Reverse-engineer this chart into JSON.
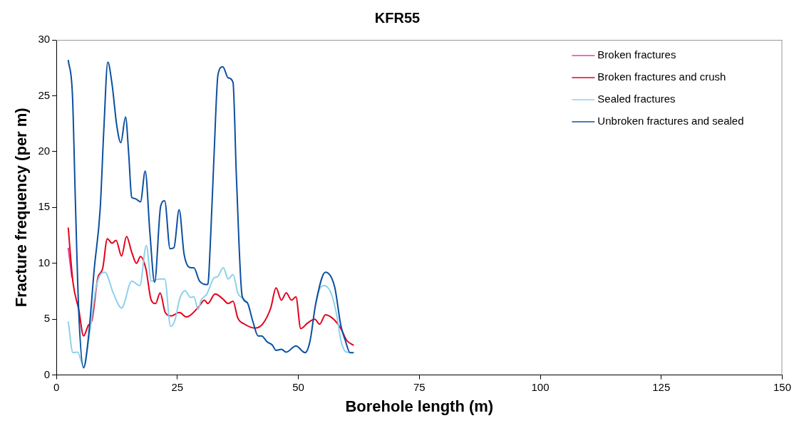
{
  "chart_data": {
    "type": "line",
    "title": "KFR55",
    "xlabel": "Borehole length (m)",
    "ylabel": "Fracture frequency (per m)",
    "xlim": [
      0,
      150
    ],
    "xticks": [
      0,
      25,
      50,
      75,
      100,
      125,
      150
    ],
    "ylim": [
      0,
      30
    ],
    "yticks": [
      0,
      5,
      10,
      15,
      20,
      25,
      30
    ],
    "grid": false,
    "legend": "top right",
    "marker": "none",
    "line_style": "solid",
    "series": [
      {
        "name": "Broken fractures",
        "color": "#e0449a",
        "x": [
          2.45,
          3.2
        ],
        "values": [
          11.4,
          8.7
        ]
      },
      {
        "name": "Broken fractures and crush",
        "color": "#e3001b",
        "x": [
          2.45,
          3.43,
          4.65,
          5.63,
          6.61,
          7.35,
          8.57,
          9.55,
          10.53,
          11.5,
          12.34,
          13.47,
          14.5,
          15.57,
          16.55,
          17.38,
          18.5,
          19.6,
          20.5,
          21.45,
          22.5,
          23.75,
          25.4,
          26.9,
          29.4,
          30.6,
          31.3,
          32.8,
          34.3,
          35.5,
          36.5,
          37.5,
          38.9,
          41.1,
          42.6,
          44.3,
          45.4,
          46.5,
          47.5,
          48.6,
          49.5,
          50.5,
          51.9,
          53.4,
          54.4,
          55.6,
          57.3,
          58.8,
          60.0,
          61.45
        ],
        "values": [
          13.2,
          8.3,
          5.8,
          3.5,
          4.45,
          4.9,
          8.7,
          9.5,
          12.2,
          11.8,
          12.05,
          10.65,
          12.4,
          11.0,
          10.0,
          10.6,
          9.5,
          6.7,
          6.4,
          7.35,
          5.6,
          5.3,
          5.6,
          5.2,
          6.1,
          6.7,
          6.4,
          7.25,
          6.85,
          6.4,
          6.6,
          5.1,
          4.55,
          4.2,
          4.55,
          6.0,
          7.8,
          6.7,
          7.35,
          6.7,
          7.0,
          4.15,
          4.65,
          5.0,
          4.55,
          5.4,
          5.0,
          4.15,
          3.1,
          2.65
        ]
      },
      {
        "name": "Sealed fractures",
        "color": "#8fd0ea",
        "x": [
          2.45,
          3.43,
          4.4,
          5.63,
          6.86,
          8.33,
          10.04,
          11.75,
          13.47,
          15.57,
          17.24,
          18.6,
          19.6,
          21.3,
          22.4,
          23.6,
          24.5,
          25.5,
          26.6,
          27.7,
          28.4,
          29.3,
          29.9,
          31.1,
          32.6,
          33.3,
          34.5,
          35.5,
          36.5,
          37.5,
          38.9,
          39.4,
          40.0,
          53.0,
          53.6,
          54.4,
          55.4,
          57.0,
          58.0,
          58.8,
          59.75,
          60.7
        ],
        "values": [
          4.8,
          2.0,
          2.05,
          0.75,
          3.75,
          8.1,
          9.2,
          7.35,
          6.0,
          8.4,
          8.0,
          11.6,
          8.4,
          8.6,
          8.6,
          4.35,
          4.9,
          6.85,
          7.55,
          6.95,
          7.0,
          5.9,
          6.7,
          7.25,
          8.7,
          8.8,
          9.6,
          8.6,
          9.0,
          7.35,
          6.75,
          6.5,
          null,
          null,
          6.4,
          7.7,
          8.0,
          7.05,
          5.2,
          3.1,
          2.1,
          2.0
        ]
      },
      {
        "name": "Unbroken fractures and sealed",
        "color": "#0b4fa0",
        "x": [
          2.45,
          3.33,
          3.92,
          4.65,
          5.63,
          6.61,
          7.83,
          9.06,
          9.8,
          10.63,
          11.5,
          12.49,
          13.32,
          14.3,
          14.94,
          15.57,
          16.2,
          17.38,
          18.36,
          19.35,
          20.3,
          21.55,
          22.38,
          23.5,
          24.3,
          25.37,
          26.4,
          27.9,
          28.4,
          29.6,
          31.3,
          31.8,
          32.6,
          33.4,
          34.4,
          35.5,
          36.5,
          37.2,
          38.4,
          39.4,
          40.6,
          41.7,
          42.4,
          43.6,
          44.6,
          45.4,
          46.5,
          47.5,
          49.5,
          51.4,
          52.4,
          53.6,
          55.6,
          57.5,
          58.8,
          59.7,
          60.7,
          61.45
        ],
        "values": [
          28.2,
          25.0,
          15.7,
          5.4,
          0.64,
          3.3,
          9.5,
          14.9,
          21.9,
          28.0,
          26.05,
          22.3,
          20.8,
          23.1,
          19.85,
          15.9,
          15.8,
          15.5,
          18.25,
          12.6,
          8.3,
          15.1,
          15.6,
          11.3,
          11.4,
          14.8,
          10.8,
          9.6,
          9.6,
          8.4,
          8.1,
          11.6,
          19.85,
          26.9,
          27.6,
          26.6,
          26.2,
          17.8,
          7.05,
          6.5,
          4.8,
          3.5,
          3.5,
          2.95,
          2.7,
          2.2,
          2.3,
          2.05,
          2.6,
          2.0,
          3.0,
          6.4,
          9.2,
          7.9,
          4.4,
          3.1,
          2.0,
          2.0
        ]
      }
    ]
  }
}
